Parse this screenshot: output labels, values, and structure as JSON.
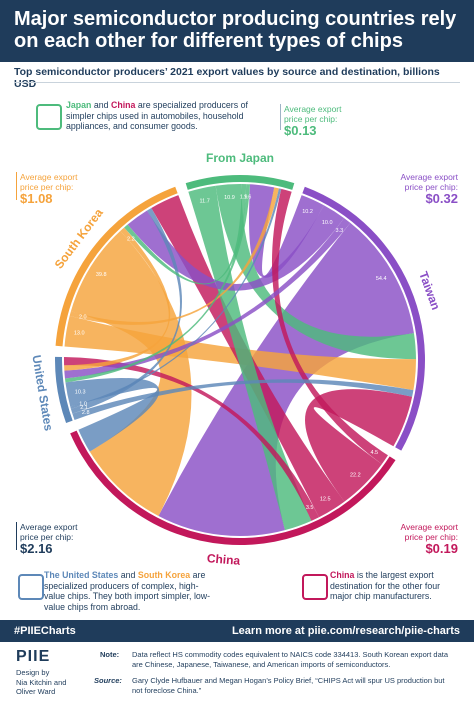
{
  "title": "Major semiconductor producing countries rely on each other for different types of chips",
  "subtitle": "Top semiconductor producers’ 2021 export values by source and destination, billions USD",
  "callouts": {
    "japan_china": {
      "p1": "Japan",
      "p2": " and ",
      "p3": "China",
      "p4": " are specialized producers of simpler chips used in automobiles, household appliances, and consumer goods."
    },
    "us_korea": {
      "p1": "The United States",
      "p2": " and ",
      "p3": "South Korea",
      "p4": " are specialized producers of complex, high-value chips. They both import simpler, low-value chips from abroad."
    },
    "china": {
      "p1": "China",
      "p2": " is the largest export destination for the other four major chip manufacturers."
    }
  },
  "prices": {
    "japan": {
      "label": "Average export price per chip:",
      "value": "$0.13"
    },
    "taiwan": {
      "label": "Average export price per chip:",
      "value": "$0.32"
    },
    "korea": {
      "label": "Average export price per chip:",
      "value": "$1.08"
    },
    "us": {
      "label": "Average export price per chip:",
      "value": "$2.16"
    },
    "china": {
      "label": "Average export price per chip:",
      "value": "$0.19"
    }
  },
  "colors": {
    "japan": "#4dbb7c",
    "taiwan": "#8a4fc6",
    "korea": "#f5a33c",
    "us": "#5d88b8",
    "china": "#c2185b",
    "navy": "#1f3c5b"
  },
  "chart_data": {
    "type": "chord",
    "nodes": [
      "Japan",
      "Taiwan",
      "China",
      "United States",
      "South Korea"
    ],
    "node_labels": [
      "From Japan",
      "Taiwan",
      "China",
      "United States",
      "South Korea"
    ],
    "flows": [
      {
        "from": "Japan",
        "to": "China",
        "value": 11.7
      },
      {
        "from": "Japan",
        "to": "Taiwan",
        "value": 10.9
      },
      {
        "from": "Japan",
        "to": "South Korea",
        "value": 1.9
      },
      {
        "from": "Japan",
        "to": "United States",
        "value": 1.6
      },
      {
        "from": "Taiwan",
        "to": "Japan",
        "value": 10.2
      },
      {
        "from": "Taiwan",
        "to": "South Korea",
        "value": 10.0
      },
      {
        "from": "Taiwan",
        "to": "United States",
        "value": 3.3
      },
      {
        "from": "Taiwan",
        "to": "China",
        "value": 54.4
      },
      {
        "from": "South Korea",
        "to": "Taiwan",
        "value": 13.0
      },
      {
        "from": "South Korea",
        "to": "Japan",
        "value": 2.0
      },
      {
        "from": "South Korea",
        "to": "China",
        "value": 39.8
      },
      {
        "from": "South Korea",
        "to": "United States",
        "value": 2.2
      },
      {
        "from": "United States",
        "to": "Taiwan",
        "value": 2.8
      },
      {
        "from": "United States",
        "to": "South Korea",
        "value": 2.1
      },
      {
        "from": "United States",
        "to": "Japan",
        "value": 1.0
      },
      {
        "from": "United States",
        "to": "China",
        "value": 10.3
      },
      {
        "from": "China",
        "to": "Japan",
        "value": 4.5
      },
      {
        "from": "China",
        "to": "Taiwan",
        "value": 22.2
      },
      {
        "from": "China",
        "to": "South Korea",
        "value": 12.5
      },
      {
        "from": "China",
        "to": "United States",
        "value": 3.5
      }
    ]
  },
  "footer": {
    "hashtag": "#PIIECharts",
    "learn": "Learn more at piie.com/research/piie-charts"
  },
  "logo": "PIIE",
  "design": "Design by\nNia Kitchin and\nOliver Ward",
  "note_label": "Note:",
  "note_text": "Data reflect HS commodity codes equivalent to NAICS code 334413. South Korean export data are Chinese, Japanese, Taiwanese, and American imports of semiconductors.",
  "source_label": "Source:",
  "source_text": "Gary Clyde Hufbauer and Megan Hogan’s Policy Brief, “CHIPS Act will spur US production but not foreclose China.”"
}
